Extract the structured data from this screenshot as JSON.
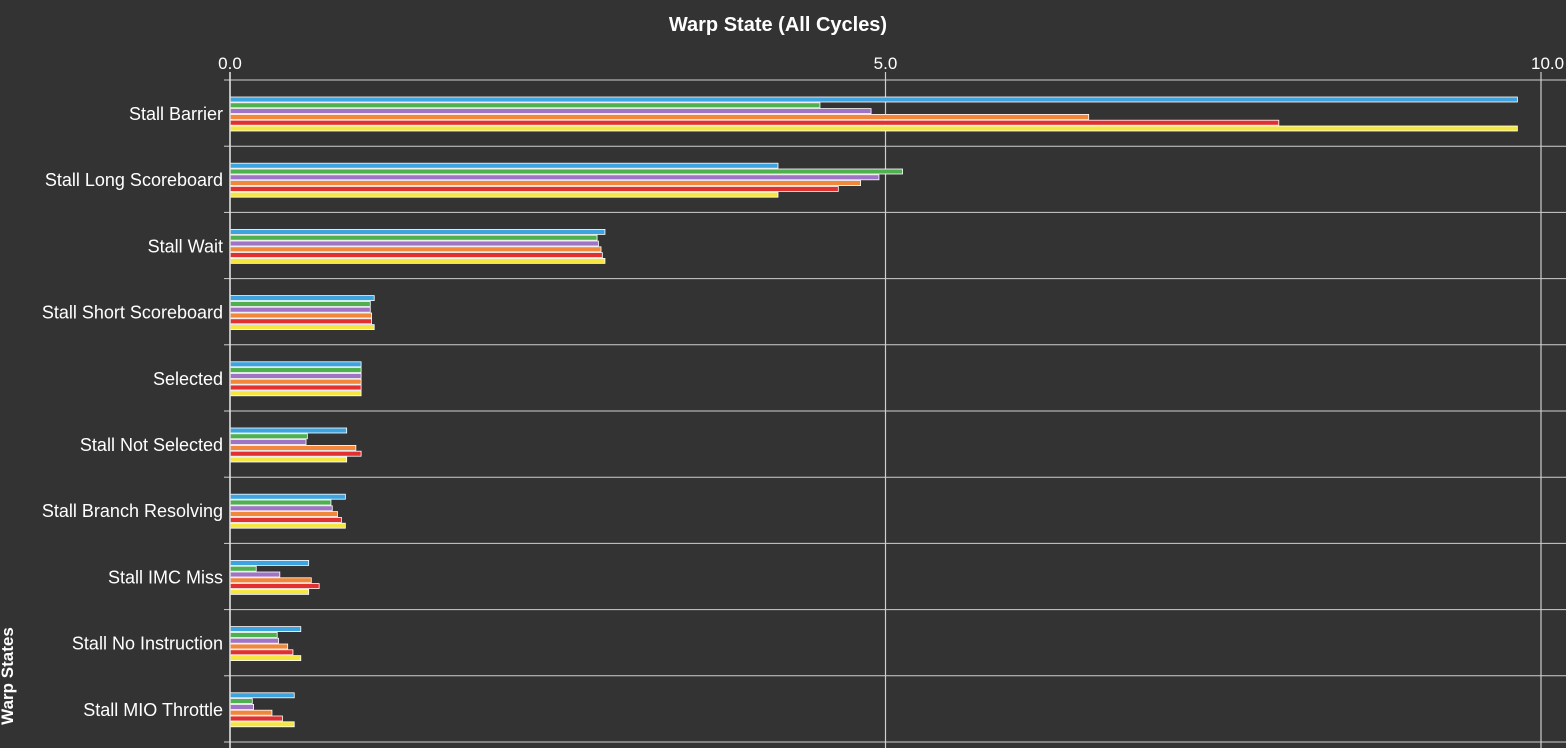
{
  "chart_data": {
    "type": "bar",
    "orientation": "horizontal",
    "title": "Warp State (All Cycles)",
    "ylabel": "Warp States",
    "xlim": [
      0,
      10
    ],
    "xticks": [
      "0.0",
      "5.0",
      "10.0"
    ],
    "grid": true,
    "legend": "none",
    "categories": [
      "Stall Barrier",
      "Stall Long Scoreboard",
      "Stall Wait",
      "Stall Short Scoreboard",
      "Selected",
      "Stall Not Selected",
      "Stall Branch Resolving",
      "Stall IMC Miss",
      "Stall No Instruction",
      "Stall MIO Throttle"
    ],
    "series": [
      {
        "color": "#3da4e0",
        "values": [
          9.82,
          4.18,
          2.86,
          1.1,
          1.0,
          0.89,
          0.88,
          0.6,
          0.54,
          0.49
        ]
      },
      {
        "color": "#4fb04f",
        "values": [
          4.5,
          5.13,
          2.8,
          1.07,
          1.0,
          0.59,
          0.77,
          0.2,
          0.36,
          0.17
        ]
      },
      {
        "color": "#a074c4",
        "values": [
          4.89,
          4.95,
          2.81,
          1.07,
          1.0,
          0.58,
          0.78,
          0.38,
          0.37,
          0.18
        ]
      },
      {
        "color": "#f0873a",
        "values": [
          6.55,
          4.81,
          2.83,
          1.08,
          1.0,
          0.96,
          0.82,
          0.62,
          0.44,
          0.32
        ]
      },
      {
        "color": "#e03030",
        "values": [
          8.0,
          4.64,
          2.84,
          1.08,
          1.0,
          1.0,
          0.85,
          0.68,
          0.48,
          0.4
        ]
      },
      {
        "color": "#f5e642",
        "values": [
          9.82,
          4.18,
          2.86,
          1.1,
          1.0,
          0.89,
          0.88,
          0.6,
          0.54,
          0.49
        ]
      }
    ]
  }
}
